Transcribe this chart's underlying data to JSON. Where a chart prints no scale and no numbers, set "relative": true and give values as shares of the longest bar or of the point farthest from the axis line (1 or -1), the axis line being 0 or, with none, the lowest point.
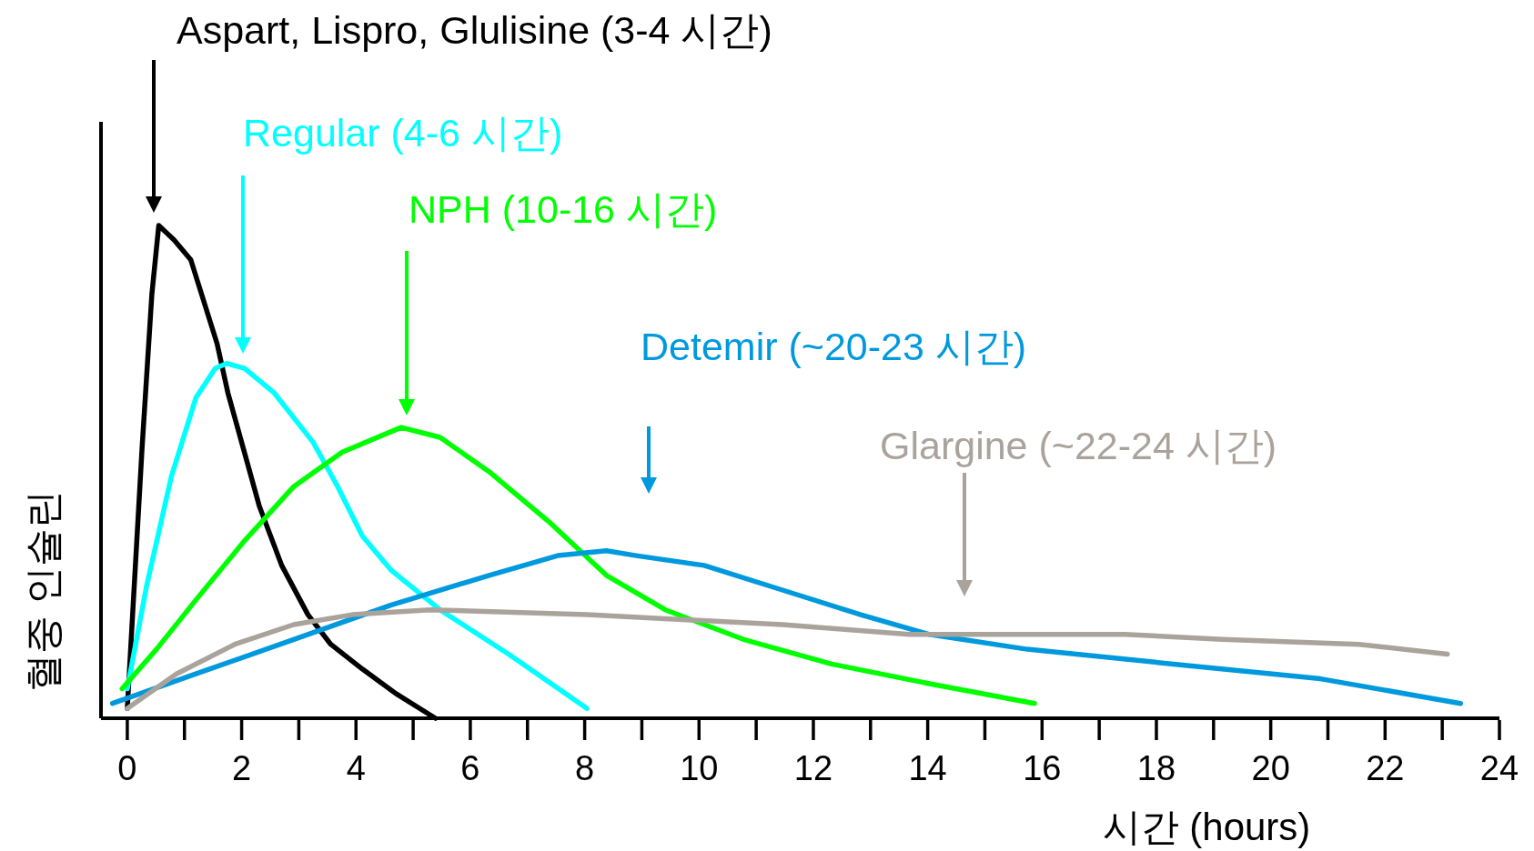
{
  "chart_data": {
    "type": "line",
    "relative": true,
    "tick_labels": "x",
    "xlabel": "시간 (hours)",
    "ylabel": "혈중 인슐린",
    "xlim": [
      -0.46,
      24
    ],
    "xticks": [
      0,
      2,
      4,
      6,
      8,
      10,
      12,
      14,
      16,
      18,
      20,
      22,
      24
    ],
    "series": [
      {
        "color": "#000000",
        "x": [
          0,
          0.26,
          0.43,
          0.55,
          0.82,
          1.11,
          1.57,
          1.76,
          2.31,
          2.7,
          3.16,
          3.56,
          4.11,
          4.7,
          5.39
        ],
        "values": [
          0.02,
          0.55,
          0.86,
          1.0,
          0.97,
          0.93,
          0.76,
          0.66,
          0.43,
          0.31,
          0.21,
          0.15,
          0.1,
          0.05,
          0.0
        ]
      },
      {
        "color": "#00ffff",
        "x": [
          0,
          0.34,
          0.77,
          1.2,
          1.54,
          1.74,
          2.05,
          2.57,
          3.25,
          3.68,
          4.11,
          4.62,
          5.47,
          6.67,
          8.04
        ],
        "values": [
          0.06,
          0.27,
          0.49,
          0.65,
          0.71,
          0.72,
          0.71,
          0.66,
          0.56,
          0.47,
          0.37,
          0.3,
          0.22,
          0.13,
          0.02
        ]
      },
      {
        "color": "#00ff00",
        "x": [
          -0.09,
          0.51,
          1.2,
          2.05,
          2.91,
          3.76,
          4.79,
          5.47,
          6.33,
          7.36,
          8.38,
          9.41,
          10.78,
          12.32,
          14.03,
          15.87
        ],
        "values": [
          0.06,
          0.14,
          0.24,
          0.36,
          0.47,
          0.54,
          0.59,
          0.57,
          0.5,
          0.4,
          0.29,
          0.22,
          0.16,
          0.11,
          0.07,
          0.03
        ]
      },
      {
        "color": "#0099dd",
        "x": [
          -0.26,
          1.2,
          2.91,
          4.62,
          6.33,
          7.53,
          8.38,
          8.9,
          10.09,
          11.46,
          12.83,
          14.03,
          15.74,
          18.3,
          20.87,
          23.32
        ],
        "values": [
          0.03,
          0.09,
          0.16,
          0.23,
          0.29,
          0.33,
          0.34,
          0.33,
          0.31,
          0.26,
          0.21,
          0.17,
          0.14,
          0.11,
          0.08,
          0.03
        ]
      },
      {
        "color": "#aaa39c",
        "x": [
          0,
          0.86,
          1.88,
          2.91,
          3.93,
          5.3,
          8.04,
          11.46,
          13.68,
          15.57,
          17.45,
          19.16,
          21.55,
          23.09
        ],
        "values": [
          0.02,
          0.09,
          0.15,
          0.19,
          0.21,
          0.22,
          0.21,
          0.19,
          0.17,
          0.17,
          0.17,
          0.16,
          0.15,
          0.13
        ]
      }
    ],
    "annotations": [
      "Aspart, Lispro, Glulisine (3-4 시간)",
      "Regular (4-6 시간)",
      "NPH (10-16 시간)",
      "Detemir (~20-23 시간)",
      "Glargine (~22-24 시간)"
    ]
  }
}
